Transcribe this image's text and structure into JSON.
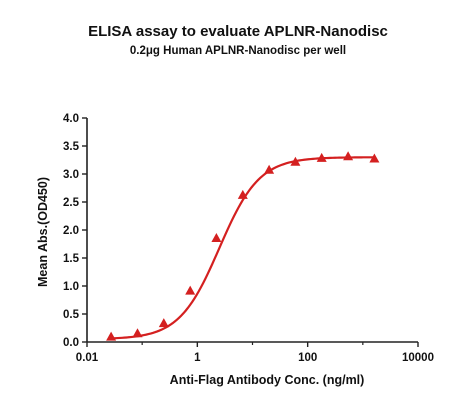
{
  "chart_data": {
    "type": "scatter",
    "title": "ELISA assay to evaluate APLNR-Nanodisc",
    "subtitle": "0.2μg Human APLNR-Nanodisc per well",
    "xlabel": "Anti-Flag Antibody Conc. (ng/ml)",
    "ylabel": "Mean Abs.(OD450)",
    "x_scale": "log",
    "xlim": [
      0.01,
      10000
    ],
    "ylim": [
      0,
      4.0
    ],
    "x_ticks": [
      0.01,
      1,
      100,
      10000
    ],
    "x_tick_labels": [
      "0.01",
      "1",
      "100",
      "10000"
    ],
    "y_ticks": [
      0,
      0.5,
      1.0,
      1.5,
      2.0,
      2.5,
      3.0,
      3.5,
      4.0
    ],
    "y_tick_labels": [
      "0.0",
      "0.5",
      "1.0",
      "1.5",
      "2.0",
      "2.5",
      "3.0",
      "3.5",
      "4.0"
    ],
    "grid": false,
    "series": [
      {
        "color": "#d42020",
        "marker": "triangle",
        "x": [
          0.0274,
          0.0823,
          0.247,
          0.741,
          2.22,
          6.67,
          20,
          60,
          180,
          540,
          1620
        ],
        "y": [
          0.09,
          0.15,
          0.33,
          0.91,
          1.85,
          2.62,
          3.07,
          3.21,
          3.28,
          3.31,
          3.27
        ]
      }
    ],
    "fit_curve": {
      "model": "4PL",
      "bottom": 0.05,
      "top": 3.3,
      "ec50": 2.5,
      "hill": 1.2
    }
  }
}
